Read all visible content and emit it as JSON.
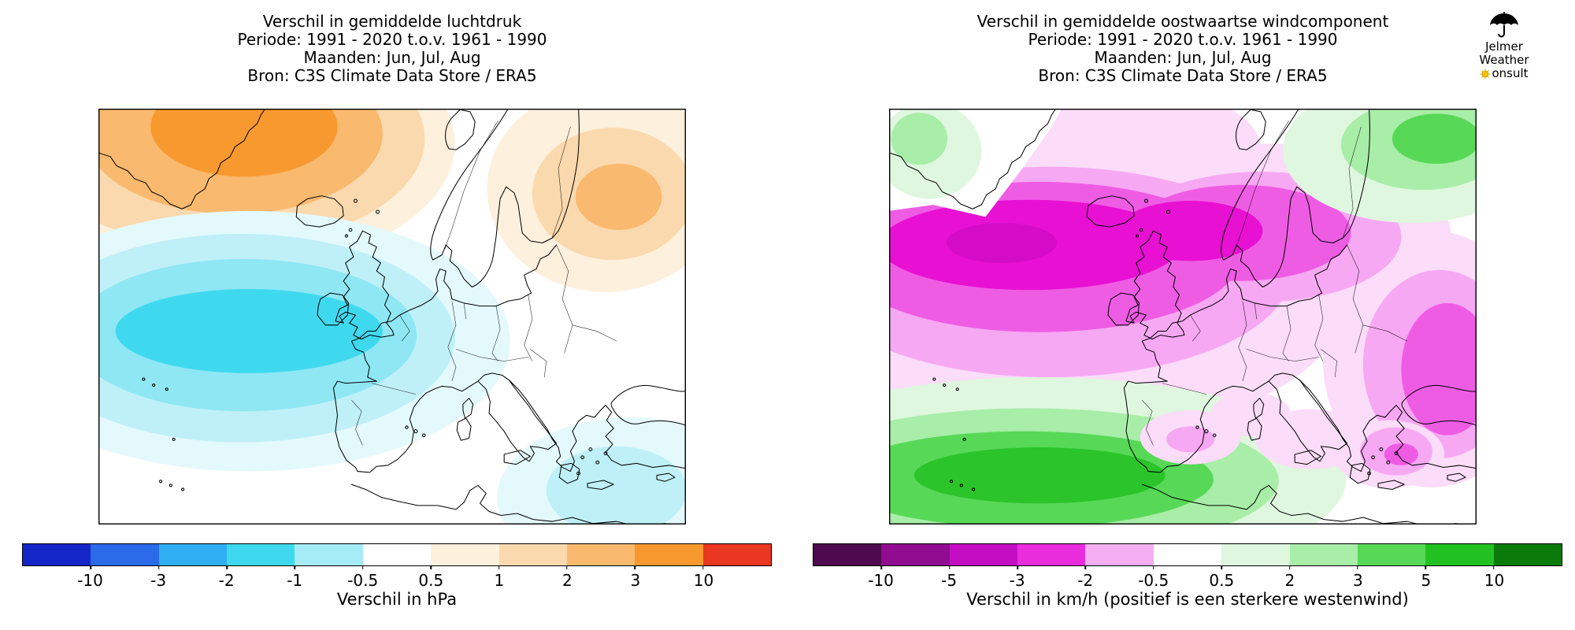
{
  "logo": {
    "line1": "Jelmer",
    "line2": "Weather",
    "line3_after_sun_icon": "onsult",
    "icons": [
      "umbrella-icon",
      "sun-icon"
    ],
    "sun_color": "#f5c400"
  },
  "panels": [
    {
      "title_lines": [
        "Verschil in gemiddelde luchtdruk",
        "Periode: 1991 - 2020 t.o.v. 1961 - 1990",
        "Maanden: Jun, Jul, Aug",
        "Bron: C3S Climate Data Store / ERA5"
      ],
      "colorbar": {
        "ticks": [
          "-10",
          "-3",
          "-2",
          "-1",
          "-0.5",
          "0.5",
          "1",
          "2",
          "3",
          "10"
        ],
        "colors": [
          "#1526c8",
          "#2b6ae8",
          "#30aef2",
          "#3fd9ef",
          "#a5ecf6",
          "#ffffff",
          "#fdf0dd",
          "#fbd9ae",
          "#f9b96e",
          "#f8992f",
          "#e93722"
        ],
        "label": "Verschil in hPa"
      }
    },
    {
      "title_lines": [
        "Verschil in gemiddelde oostwaartse windcomponent",
        "Periode: 1991 - 2020 t.o.v. 1961 - 1990",
        "Maanden: Jun, Jul, Aug",
        "Bron: C3S Climate Data Store / ERA5"
      ],
      "colorbar": {
        "ticks": [
          "-10",
          "-5",
          "-3",
          "-2",
          "-0.5",
          "0.5",
          "2",
          "3",
          "5",
          "10"
        ],
        "colors": [
          "#4d0a4d",
          "#900d90",
          "#c40ec4",
          "#e92ddd",
          "#f6aef2",
          "#ffffff",
          "#dff7df",
          "#a8eda8",
          "#57d957",
          "#22c122",
          "#0a7a0a"
        ],
        "label": "Verschil in km/h (positief is een sterkere westenwind)"
      }
    }
  ],
  "chart_data": [
    {
      "type": "heatmap",
      "subtype": "filled_contour_map",
      "region": "North Atlantic / Europe (approx. 45W-40E, 30N-72N)",
      "title": "Verschil in gemiddelde luchtdruk",
      "period": "1991 - 2020 t.o.v. 1961 - 1990",
      "months": "Jun, Jul, Aug",
      "source": "C3S Climate Data Store / ERA5",
      "units": "hPa",
      "contour_levels": [
        -10,
        -3,
        -2,
        -1,
        -0.5,
        0.5,
        1,
        2,
        3,
        10
      ],
      "colorbar_label": "Verschil in hPa",
      "legend_position": "bottom",
      "features": [
        {
          "anomaly": "negative",
          "value_range_hPa": [
            -2,
            -1
          ],
          "location": "large cyan low-pressure anomaly over the North Atlantic west of Ireland and the UK"
        },
        {
          "anomaly": "positive",
          "value_range_hPa": [
            2,
            3
          ],
          "location": "orange high-pressure anomaly over Greenland and the Denmark Strait"
        },
        {
          "anomaly": "positive",
          "value_range_hPa": [
            1,
            2
          ],
          "location": "Baltic / Finland / northwest Russia"
        },
        {
          "anomaly": "negative",
          "value_range_hPa": [
            -1,
            -0.5
          ],
          "location": "Aegean / eastern Mediterranean"
        },
        {
          "anomaly": "neutral",
          "value_range_hPa": [
            -0.5,
            0.5
          ],
          "location": "most of continental Europe (white)"
        }
      ]
    },
    {
      "type": "heatmap",
      "subtype": "filled_contour_map",
      "region": "North Atlantic / Europe (approx. 45W-40E, 30N-72N)",
      "title": "Verschil in gemiddelde oostwaartse windcomponent",
      "period": "1991 - 2020 t.o.v. 1961 - 1990",
      "months": "Jun, Jul, Aug",
      "source": "C3S Climate Data Store / ERA5",
      "units": "km/h",
      "contour_levels": [
        -10,
        -5,
        -3,
        -2,
        -0.5,
        0.5,
        2,
        3,
        5,
        10
      ],
      "colorbar_label": "Verschil in km/h (positief is een sterkere westenwind)",
      "legend_position": "bottom",
      "features": [
        {
          "anomaly": "negative (weaker westerlies)",
          "value_range_kmh": [
            -5,
            -2
          ],
          "location": "broad magenta band across the North Atlantic (~50-65N) extending over Iceland toward Scandinavia"
        },
        {
          "anomaly": "negative (weaker westerlies)",
          "value_range_kmh": [
            -5,
            -2
          ],
          "location": "eastern Europe / Black Sea region near right map edge"
        },
        {
          "anomaly": "positive (stronger westerlies)",
          "value_range_kmh": [
            2,
            5
          ],
          "location": "green band across the subtropical Atlantic (~35-45N)"
        },
        {
          "anomaly": "positive (stronger westerlies)",
          "value_range_kmh": [
            2,
            3
          ],
          "location": "northern Scandinavia / northwest Russia and near southern Greenland"
        },
        {
          "anomaly": "weak negative",
          "value_range_kmh": [
            -2,
            -0.5
          ],
          "location": "patches over Iberia, Italy, the Balkans and the Aegean"
        }
      ]
    }
  ]
}
